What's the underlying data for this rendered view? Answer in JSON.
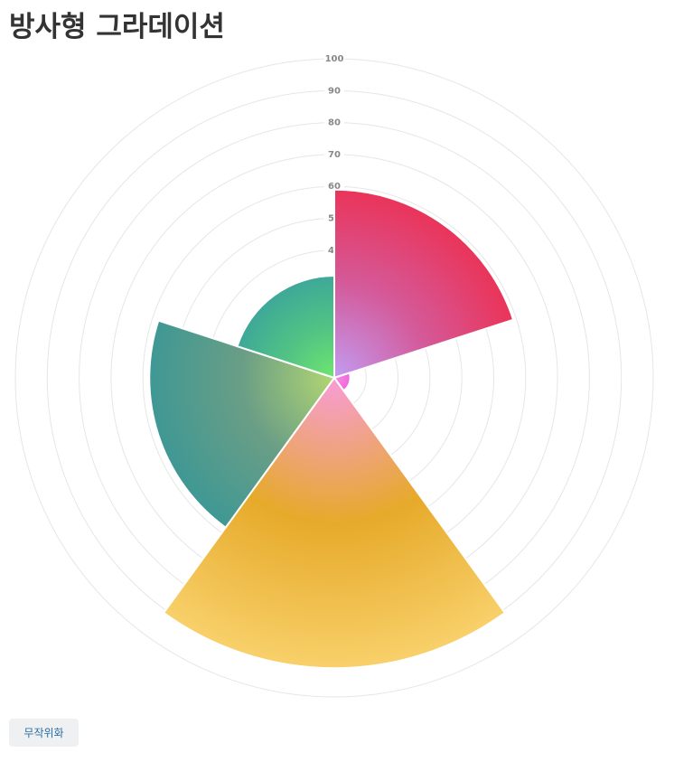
{
  "title": "방사형 그라데이션",
  "button": "무작위화",
  "chart_data": {
    "type": "polarArea",
    "values": [
      59,
      5,
      91,
      58,
      32
    ],
    "gradients": [
      [
        "#c29cf2",
        "#d45a9a",
        "#ea3459"
      ],
      [
        "#f08ae8",
        "#f47ae0",
        "#f065e0"
      ],
      [
        "#f89cd8",
        "#e6aa2a",
        "#f8d06a"
      ],
      [
        "#b2d672",
        "#6a9e86",
        "#3f9894"
      ],
      [
        "#6ee66e",
        "#52c384",
        "#3ea898"
      ]
    ],
    "ylim": [
      0,
      100
    ],
    "yticks": [
      10,
      20,
      30,
      40,
      50,
      60,
      70,
      80,
      90,
      100
    ],
    "grid": true
  }
}
